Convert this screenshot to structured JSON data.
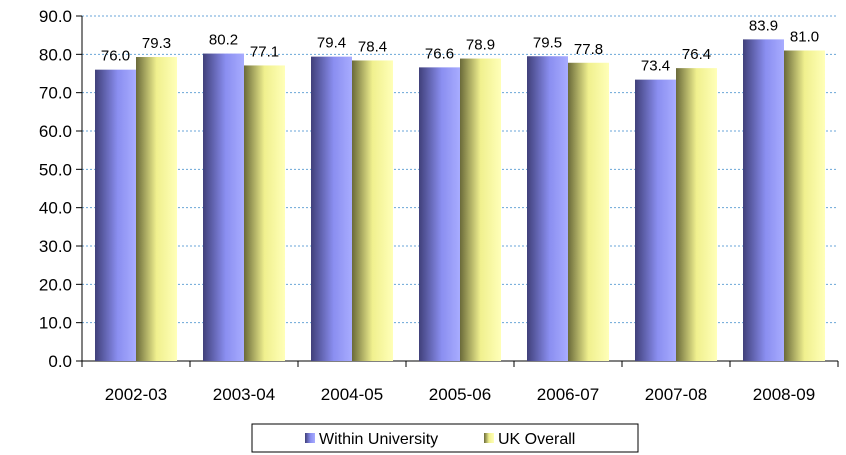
{
  "chart_data": {
    "type": "bar",
    "categories": [
      "2002-03",
      "2003-04",
      "2004-05",
      "2005-06",
      "2006-07",
      "2007-08",
      "2008-09"
    ],
    "series": [
      {
        "name": "Within University",
        "values": [
          76.0,
          80.2,
          79.4,
          76.6,
          79.5,
          73.4,
          83.9
        ],
        "color": "#8a8ef0"
      },
      {
        "name": "UK Overall",
        "values": [
          79.3,
          77.1,
          78.4,
          78.9,
          77.8,
          76.4,
          81.0
        ],
        "color": "#f2f290"
      }
    ],
    "ylim": [
      0,
      90
    ],
    "yticks": [
      "0.0",
      "10.0",
      "20.0",
      "30.0",
      "40.0",
      "50.0",
      "60.0",
      "70.0",
      "80.0",
      "90.0"
    ],
    "grid": true,
    "legend_position": "bottom",
    "data_labels": true
  }
}
